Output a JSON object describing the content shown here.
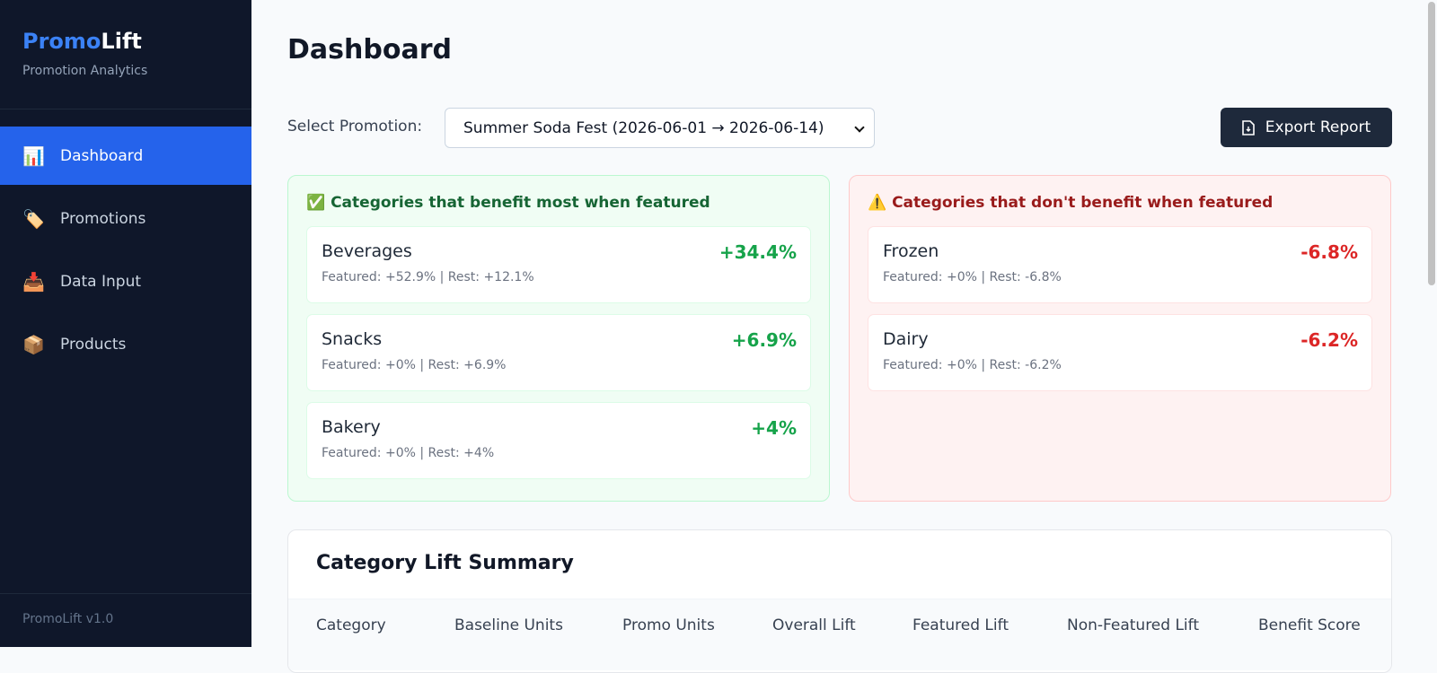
{
  "sidebar": {
    "brand": {
      "part1": "Promo",
      "part2": "Lift"
    },
    "subtitle": "Promotion Analytics",
    "nav": [
      {
        "icon": "📊",
        "label": "Dashboard",
        "active": true
      },
      {
        "icon": "🏷️",
        "label": "Promotions"
      },
      {
        "icon": "📥",
        "label": "Data Input"
      },
      {
        "icon": "📦",
        "label": "Products"
      }
    ],
    "footer": "PromoLift v1.0"
  },
  "main": {
    "title": "Dashboard",
    "select_label": "Select Promotion:",
    "select_value": "Summer Soda Fest (2026-06-01 → 2026-06-14)",
    "export_button": "Export Report",
    "benefit_panel": {
      "title": "✅ Categories that benefit most when featured",
      "items": [
        {
          "name": "Beverages",
          "lift": "+34.4%",
          "detail": "Featured: +52.9% | Rest: +12.1%"
        },
        {
          "name": "Snacks",
          "lift": "+6.9%",
          "detail": "Featured: +0% | Rest: +6.9%"
        },
        {
          "name": "Bakery",
          "lift": "+4%",
          "detail": "Featured: +0% | Rest: +4%"
        }
      ]
    },
    "no_benefit_panel": {
      "title": "⚠️ Categories that don't benefit when featured",
      "items": [
        {
          "name": "Frozen",
          "lift": "-6.8%",
          "detail": "Featured: +0% | Rest: -6.8%"
        },
        {
          "name": "Dairy",
          "lift": "-6.2%",
          "detail": "Featured: +0% | Rest: -6.2%"
        }
      ]
    },
    "table": {
      "title": "Category Lift Summary",
      "headers": [
        "Category",
        "Baseline Units",
        "Promo Units",
        "Overall Lift",
        "Featured Lift",
        "Non-Featured Lift",
        "Benefit Score"
      ]
    }
  }
}
